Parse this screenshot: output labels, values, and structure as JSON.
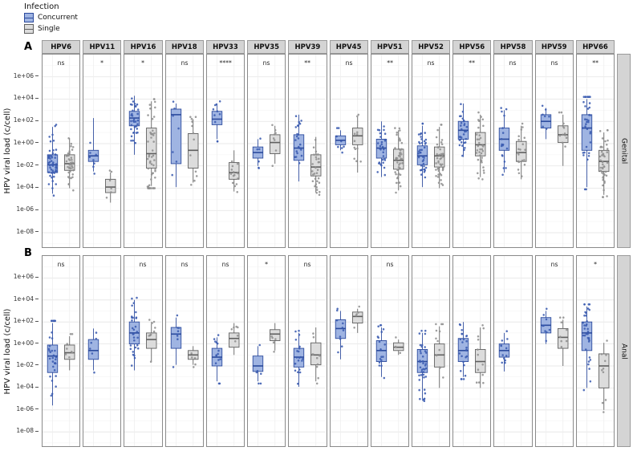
{
  "chart_data": {
    "type": "boxplot",
    "legend_title": "Infection",
    "groups": [
      "Concurrent",
      "Single"
    ],
    "y_label": "HPV viral load (c/cell)",
    "y_ticks": [
      "1e+06",
      "1e+04",
      "1e+02",
      "1e+00",
      "1e-02",
      "1e-04",
      "1e-06",
      "1e-08"
    ],
    "y_tick_exponents": [
      6,
      4,
      2,
      0,
      -2,
      -4,
      -6,
      -8
    ],
    "y_range_log10": [
      -9.3,
      8
    ],
    "grid": true,
    "facet_columns": [
      "HPV6",
      "HPV11",
      "HPV16",
      "HPV18",
      "HPV33",
      "HPV35",
      "HPV39",
      "HPV45",
      "HPV51",
      "HPV52",
      "HPV56",
      "HPV58",
      "HPV59",
      "HPV66"
    ],
    "colors": {
      "concurrent": {
        "fill": "#9fb4e2",
        "stroke": "#2b4a9d",
        "point": "#3a5bb0"
      },
      "single": {
        "fill": "#dcdcdc",
        "stroke": "#5f5f5f",
        "point": "#8f8f8f"
      },
      "strip_bg": "#d4d4d4"
    },
    "facet_rows": [
      {
        "label": "A",
        "strip": "Genital",
        "significance": [
          "ns",
          "*",
          "*",
          "ns",
          "****",
          "ns",
          "**",
          "ns",
          "**",
          "ns",
          "**",
          "ns",
          "ns",
          "**"
        ],
        "boxes": [
          {
            "type": "HPV6",
            "concurrent": {
              "whislo": -4.5,
              "q1": -2.6,
              "med": -1.9,
              "q3": -1.0,
              "whishi": 1.5,
              "n": 50
            },
            "single": {
              "whislo": -4.0,
              "q1": -2.4,
              "med": -1.8,
              "q3": -1.0,
              "whishi": 0.5,
              "n": 40
            }
          },
          {
            "type": "HPV11",
            "concurrent": {
              "whislo": -2.5,
              "q1": -1.6,
              "med": -1.1,
              "q3": -0.6,
              "whishi": 2.3,
              "n": 8
            },
            "single": {
              "whislo": -5.3,
              "q1": -4.4,
              "med": -3.9,
              "q3": -3.2,
              "whishi": -2.6,
              "n": 6
            }
          },
          {
            "type": "HPV16",
            "concurrent": {
              "whislo": -1.0,
              "q1": 1.6,
              "med": 2.3,
              "q3": 2.9,
              "whishi": 4.3,
              "n": 35
            },
            "single": {
              "whislo": -3.8,
              "q1": -2.2,
              "med": -0.9,
              "q3": 1.4,
              "whishi": 3.8,
              "n": 55
            }
          },
          {
            "type": "HPV18",
            "concurrent": {
              "whislo": -3.9,
              "q1": -1.8,
              "med": 2.6,
              "q3": 3.1,
              "whishi": 3.6,
              "n": 7
            },
            "single": {
              "whislo": -3.5,
              "q1": -2.2,
              "med": -0.6,
              "q3": 0.9,
              "whishi": 2.2,
              "n": 12
            }
          },
          {
            "type": "HPV33",
            "concurrent": {
              "whislo": 0.4,
              "q1": 1.7,
              "med": 2.2,
              "q3": 2.9,
              "whishi": 3.6,
              "n": 10
            },
            "single": {
              "whislo": -4.3,
              "q1": -3.2,
              "med": -2.6,
              "q3": -1.7,
              "whishi": -0.6,
              "n": 14
            }
          },
          {
            "type": "HPV35",
            "concurrent": {
              "whislo": -2.0,
              "q1": -1.3,
              "med": -0.8,
              "q3": -0.3,
              "whishi": 0.4,
              "n": 6
            },
            "single": {
              "whislo": -1.8,
              "q1": -0.9,
              "med": 0.1,
              "q3": 0.8,
              "whishi": 1.6,
              "n": 8
            }
          },
          {
            "type": "HPV39",
            "concurrent": {
              "whislo": -3.4,
              "q1": -1.5,
              "med": -0.4,
              "q3": 0.8,
              "whishi": 2.6,
              "n": 22
            },
            "single": {
              "whislo": -4.4,
              "q1": -2.9,
              "med": -2.1,
              "q3": -1.0,
              "whishi": 0.6,
              "n": 30
            }
          },
          {
            "type": "HPV45",
            "concurrent": {
              "whislo": -0.6,
              "q1": -0.1,
              "med": 0.3,
              "q3": 0.7,
              "whishi": 1.2,
              "n": 8
            },
            "single": {
              "whislo": -2.6,
              "q1": -0.1,
              "med": 0.7,
              "q3": 1.4,
              "whishi": 2.4,
              "n": 12
            }
          },
          {
            "type": "HPV51",
            "concurrent": {
              "whislo": -3.0,
              "q1": -1.3,
              "med": -0.4,
              "q3": 0.4,
              "whishi": 2.0,
              "n": 30
            },
            "single": {
              "whislo": -4.2,
              "q1": -2.3,
              "med": -1.5,
              "q3": -0.5,
              "whishi": 1.2,
              "n": 45
            }
          },
          {
            "type": "HPV52",
            "concurrent": {
              "whislo": -3.9,
              "q1": -1.9,
              "med": -1.1,
              "q3": -0.2,
              "whishi": 1.6,
              "n": 40
            },
            "single": {
              "whislo": -4.0,
              "q1": -2.1,
              "med": -1.1,
              "q3": -0.3,
              "whishi": 1.5,
              "n": 45
            }
          },
          {
            "type": "HPV56",
            "concurrent": {
              "whislo": -1.2,
              "q1": 0.4,
              "med": 1.2,
              "q3": 2.0,
              "whishi": 3.6,
              "n": 30
            },
            "single": {
              "whislo": -3.0,
              "q1": -1.1,
              "med": -0.1,
              "q3": 1.0,
              "whishi": 2.6,
              "n": 35
            }
          },
          {
            "type": "HPV58",
            "concurrent": {
              "whislo": -2.6,
              "q1": -0.6,
              "med": 0.4,
              "q3": 1.4,
              "whishi": 3.0,
              "n": 18
            },
            "single": {
              "whislo": -3.2,
              "q1": -1.6,
              "med": -0.8,
              "q3": 0.2,
              "whishi": 1.6,
              "n": 20
            }
          },
          {
            "type": "HPV59",
            "concurrent": {
              "whislo": 0.4,
              "q1": 1.4,
              "med": 2.0,
              "q3": 2.6,
              "whishi": 3.2,
              "n": 7
            },
            "single": {
              "whislo": -2.0,
              "q1": 0.1,
              "med": 0.8,
              "q3": 1.6,
              "whishi": 2.6,
              "n": 12
            }
          },
          {
            "type": "HPV66",
            "concurrent": {
              "whislo": -3.9,
              "q1": -0.6,
              "med": 1.4,
              "q3": 2.6,
              "whishi": 4.0,
              "n": 35
            },
            "single": {
              "whislo": -4.6,
              "q1": -2.5,
              "med": -1.6,
              "q3": -0.6,
              "whishi": 1.0,
              "n": 45
            }
          }
        ]
      },
      {
        "label": "B",
        "strip": "Anal",
        "significance": [
          "ns",
          "",
          "ns",
          "ns",
          "ns",
          "*",
          "ns",
          "",
          "ns",
          "",
          "",
          "",
          "ns",
          "*"
        ],
        "boxes": [
          {
            "type": "HPV6",
            "concurrent": {
              "whislo": -5.6,
              "q1": -2.6,
              "med": -1.1,
              "q3": -0.1,
              "whishi": 1.9,
              "n": 35
            },
            "single": {
              "whislo": -2.4,
              "q1": -1.4,
              "med": -0.8,
              "q3": -0.1,
              "whishi": 0.7,
              "n": 8
            }
          },
          {
            "type": "HPV11",
            "concurrent": {
              "whislo": -2.4,
              "q1": -1.4,
              "med": -0.6,
              "q3": 0.4,
              "whishi": 1.4,
              "n": 6
            },
            "single": null
          },
          {
            "type": "HPV16",
            "concurrent": {
              "whislo": -2.4,
              "q1": 0.0,
              "med": 1.0,
              "q3": 2.0,
              "whishi": 4.0,
              "n": 30
            },
            "single": {
              "whislo": -1.6,
              "q1": -0.4,
              "med": 0.4,
              "q3": 1.0,
              "whishi": 2.0,
              "n": 10
            }
          },
          {
            "type": "HPV18",
            "concurrent": {
              "whislo": -1.9,
              "q1": -0.4,
              "med": 0.9,
              "q3": 1.5,
              "whishi": 2.4,
              "n": 8
            },
            "single": {
              "whislo": -1.9,
              "q1": -1.4,
              "med": -1.0,
              "q3": -0.6,
              "whishi": -0.2,
              "n": 5
            }
          },
          {
            "type": "HPV33",
            "concurrent": {
              "whislo": -3.4,
              "q1": -2.0,
              "med": -1.2,
              "q3": -0.4,
              "whishi": 0.6,
              "n": 14
            },
            "single": {
              "whislo": -1.0,
              "q1": -0.3,
              "med": 0.5,
              "q3": 1.0,
              "whishi": 1.9,
              "n": 6
            }
          },
          {
            "type": "HPV35",
            "concurrent": {
              "whislo": -3.4,
              "q1": -2.5,
              "med": -2.0,
              "q3": -1.1,
              "whishi": -0.2,
              "n": 6
            },
            "single": {
              "whislo": -0.6,
              "q1": 0.3,
              "med": 0.9,
              "q3": 1.3,
              "whishi": 1.9,
              "n": 5
            }
          },
          {
            "type": "HPV39",
            "concurrent": {
              "whislo": -3.9,
              "q1": -2.1,
              "med": -1.2,
              "q3": -0.4,
              "whishi": 1.0,
              "n": 20
            },
            "single": {
              "whislo": -3.4,
              "q1": -1.9,
              "med": -1.0,
              "q3": 0.1,
              "whishi": 1.5,
              "n": 10
            }
          },
          {
            "type": "HPV45",
            "concurrent": {
              "whislo": -1.4,
              "q1": 0.5,
              "med": 1.4,
              "q3": 2.2,
              "whishi": 3.0,
              "n": 10
            },
            "single": {
              "whislo": 1.0,
              "q1": 1.9,
              "med": 2.5,
              "q3": 2.9,
              "whishi": 3.2,
              "n": 5
            }
          },
          {
            "type": "HPV51",
            "concurrent": {
              "whislo": -3.0,
              "q1": -1.6,
              "med": -0.6,
              "q3": 0.3,
              "whishi": 1.5,
              "n": 18
            },
            "single": {
              "whislo": -1.0,
              "q1": -0.6,
              "med": -0.3,
              "q3": 0.1,
              "whishi": 0.4,
              "n": 4
            }
          },
          {
            "type": "HPV52",
            "concurrent": {
              "whislo": -5.0,
              "q1": -2.6,
              "med": -1.6,
              "q3": -0.5,
              "whishi": 1.0,
              "n": 40
            },
            "single": {
              "whislo": -4.0,
              "q1": -2.1,
              "med": -1.0,
              "q3": 0.0,
              "whishi": 1.6,
              "n": 12
            }
          },
          {
            "type": "HPV56",
            "concurrent": {
              "whislo": -3.0,
              "q1": -1.6,
              "med": -0.6,
              "q3": 0.5,
              "whishi": 2.0,
              "n": 25
            },
            "single": {
              "whislo": -4.0,
              "q1": -2.6,
              "med": -1.6,
              "q3": -0.5,
              "whishi": 1.5,
              "n": 12
            }
          },
          {
            "type": "HPV58",
            "concurrent": {
              "whislo": -2.5,
              "q1": -1.2,
              "med": -0.6,
              "q3": 0.0,
              "whishi": 1.0,
              "n": 12
            },
            "single": null
          },
          {
            "type": "HPV59",
            "concurrent": {
              "whislo": 0.0,
              "q1": 1.0,
              "med": 1.7,
              "q3": 2.4,
              "whishi": 3.0,
              "n": 9
            },
            "single": {
              "whislo": -2.0,
              "q1": -0.4,
              "med": 0.6,
              "q3": 1.4,
              "whishi": 2.2,
              "n": 8
            }
          },
          {
            "type": "HPV66",
            "concurrent": {
              "whislo": -4.0,
              "q1": -0.6,
              "med": 1.0,
              "q3": 2.0,
              "whishi": 3.4,
              "n": 35
            },
            "single": {
              "whislo": -6.0,
              "q1": -4.0,
              "med": -2.0,
              "q3": -0.9,
              "whishi": 0.1,
              "n": 10
            }
          }
        ]
      }
    ]
  }
}
